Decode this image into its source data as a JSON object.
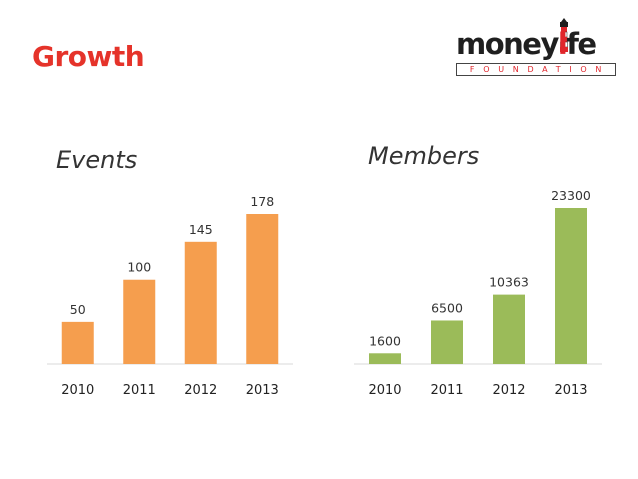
{
  "slide": {
    "title": "Growth"
  },
  "logo": {
    "word_dark_1": "money",
    "word_red": "l",
    "word_dark_2": "fe",
    "tagline": "FOUNDATION"
  },
  "colors": {
    "title_red": "#e5332a",
    "events_bar": "#f59e4e",
    "members_bar": "#9bbb59",
    "axis": "#d9d9d9"
  },
  "chart_data": [
    {
      "type": "bar",
      "title": "Events",
      "categories": [
        "2010",
        "2011",
        "2012",
        "2013"
      ],
      "values": [
        50,
        100,
        145,
        178
      ],
      "ylim": [
        0,
        178
      ],
      "grid": false
    },
    {
      "type": "bar",
      "title": "Members",
      "categories": [
        "2010",
        "2011",
        "2012",
        "2013"
      ],
      "values": [
        1600,
        6500,
        10363,
        23300
      ],
      "ylim": [
        0,
        23300
      ],
      "grid": false
    }
  ]
}
